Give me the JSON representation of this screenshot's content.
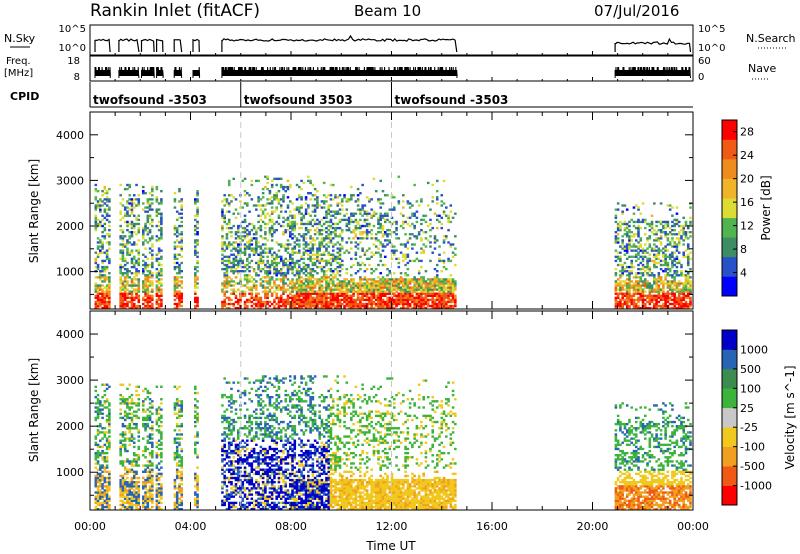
{
  "header": {
    "title": "Rankin Inlet (fitACF)",
    "beam": "Beam 10",
    "date": "07/Jul/2016"
  },
  "nsky_panel": {
    "left_label": "N.Sky",
    "left_ticks": [
      "10^5",
      "10^0"
    ],
    "right_label": "N.Search",
    "right_ticks": [
      "10^5",
      "10^0"
    ]
  },
  "freq_panel": {
    "left_label_1": "Freq.",
    "left_label_2": "[MHz]",
    "left_ticks": [
      "18",
      "8"
    ],
    "right_label": "Nave",
    "right_ticks": [
      "60",
      "0"
    ]
  },
  "cpid_panel": {
    "label": "CPID",
    "segments": [
      {
        "start_hour": 0.0,
        "text": "twofsound -3503"
      },
      {
        "start_hour": 6.0,
        "text": "twofsound 3503"
      },
      {
        "start_hour": 12.0,
        "text": "twofsound -3503"
      }
    ]
  },
  "chart_data": [
    {
      "type": "heatmap",
      "panel": "power",
      "ylabel": "Slant Range [km]",
      "xlabel": "Time UT",
      "xlim": [
        "00:00",
        "24:00"
      ],
      "ylim": [
        180,
        4500
      ],
      "y_ticks": [
        "1000",
        "2000",
        "3000",
        "4000"
      ],
      "x_ticks": [
        "00:00",
        "04:00",
        "08:00",
        "12:00",
        "16:00",
        "20:00",
        "00:00"
      ],
      "colorbar": {
        "label": "Power [dB]",
        "tick_labels": [
          "4",
          "8",
          "12",
          "16",
          "20",
          "24",
          "28"
        ],
        "range": [
          0,
          30
        ],
        "colors": [
          "#0000ff",
          "#2850c8",
          "#3c8c64",
          "#50b450",
          "#dcdc32",
          "#f0b428",
          "#f08c1e",
          "#f05a14",
          "#ff0000"
        ]
      },
      "data_intervals_hours": [
        [
          0.2,
          0.8
        ],
        [
          1.15,
          1.95
        ],
        [
          2.05,
          2.55
        ],
        [
          2.65,
          2.9
        ],
        [
          3.35,
          3.65
        ],
        [
          4.1,
          4.35
        ],
        [
          5.25,
          14.6
        ],
        [
          20.9,
          23.9
        ]
      ]
    },
    {
      "type": "heatmap",
      "panel": "velocity",
      "ylabel": "Slant Range [km]",
      "xlabel": "Time UT",
      "xlim": [
        "00:00",
        "24:00"
      ],
      "ylim": [
        180,
        4500
      ],
      "y_ticks": [
        "1000",
        "2000",
        "3000",
        "4000"
      ],
      "x_ticks": [
        "00:00",
        "04:00",
        "08:00",
        "12:00",
        "16:00",
        "20:00",
        "00:00"
      ],
      "colorbar": {
        "label": "Velocity [m s^-1]",
        "tick_labels": [
          "1000",
          "500",
          "100",
          "25",
          "-25",
          "-100",
          "-500",
          "-1000"
        ],
        "range": [
          -1000,
          1000
        ],
        "colors": [
          "#ff0000",
          "#f05a14",
          "#f0a01e",
          "#f0c81e",
          "#c8c8c8",
          "#3cb43c",
          "#3c8c50",
          "#2864b4",
          "#0000c8"
        ]
      },
      "data_intervals_hours": [
        [
          0.2,
          0.8
        ],
        [
          1.15,
          1.95
        ],
        [
          2.05,
          2.55
        ],
        [
          2.65,
          2.9
        ],
        [
          3.35,
          3.65
        ],
        [
          4.1,
          4.35
        ],
        [
          5.25,
          14.6
        ],
        [
          20.9,
          23.9
        ]
      ]
    }
  ]
}
